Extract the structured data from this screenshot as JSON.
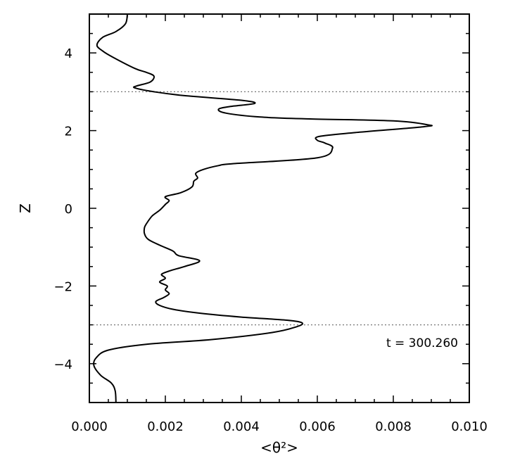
{
  "chart_data": {
    "type": "line",
    "title": "",
    "xlabel": "<θ²>",
    "ylabel": "Z",
    "xlim": [
      0.0,
      0.01
    ],
    "ylim": [
      -5,
      5
    ],
    "x_ticks": [
      "0.000",
      "0.002",
      "0.004",
      "0.006",
      "0.008",
      "0.010"
    ],
    "y_ticks": [
      "-4",
      "-2",
      "0",
      "2",
      "4"
    ],
    "annotation": "t = 300.260",
    "reference_lines": {
      "horizontal": [
        3.0,
        -3.0
      ],
      "vertical": [
        0.0
      ]
    },
    "series": [
      {
        "color": "#000000",
        "points": [
          [
            0.0007,
            -5.0
          ],
          [
            0.00068,
            -4.7
          ],
          [
            0.00058,
            -4.5
          ],
          [
            0.0003,
            -4.3
          ],
          [
            0.00012,
            -4.05
          ],
          [
            0.00018,
            -3.85
          ],
          [
            0.0005,
            -3.65
          ],
          [
            0.0015,
            -3.5
          ],
          [
            0.0032,
            -3.38
          ],
          [
            0.0048,
            -3.2
          ],
          [
            0.00545,
            -3.05
          ],
          [
            0.0056,
            -2.95
          ],
          [
            0.0052,
            -2.88
          ],
          [
            0.004,
            -2.8
          ],
          [
            0.0029,
            -2.7
          ],
          [
            0.0022,
            -2.6
          ],
          [
            0.00185,
            -2.5
          ],
          [
            0.00175,
            -2.4
          ],
          [
            0.00195,
            -2.3
          ],
          [
            0.0021,
            -2.2
          ],
          [
            0.002,
            -2.1
          ],
          [
            0.00205,
            -2.0
          ],
          [
            0.00185,
            -1.9
          ],
          [
            0.002,
            -1.8
          ],
          [
            0.0019,
            -1.7
          ],
          [
            0.00215,
            -1.6
          ],
          [
            0.0025,
            -1.5
          ],
          [
            0.0029,
            -1.35
          ],
          [
            0.00235,
            -1.22
          ],
          [
            0.0022,
            -1.1
          ],
          [
            0.00185,
            -0.95
          ],
          [
            0.00155,
            -0.8
          ],
          [
            0.00145,
            -0.65
          ],
          [
            0.00145,
            -0.5
          ],
          [
            0.0015,
            -0.4
          ],
          [
            0.00165,
            -0.2
          ],
          [
            0.00185,
            -0.05
          ],
          [
            0.002,
            0.1
          ],
          [
            0.0021,
            0.2
          ],
          [
            0.002,
            0.3
          ],
          [
            0.0024,
            0.4
          ],
          [
            0.0027,
            0.55
          ],
          [
            0.00275,
            0.7
          ],
          [
            0.00285,
            0.78
          ],
          [
            0.0028,
            0.9
          ],
          [
            0.003,
            1.0
          ],
          [
            0.0034,
            1.1
          ],
          [
            0.0038,
            1.15
          ],
          [
            0.006,
            1.3
          ],
          [
            0.0064,
            1.55
          ],
          [
            0.0062,
            1.68
          ],
          [
            0.006,
            1.75
          ],
          [
            0.00605,
            1.85
          ],
          [
            0.007,
            1.95
          ],
          [
            0.0088,
            2.1
          ],
          [
            0.0089,
            2.15
          ],
          [
            0.008,
            2.25
          ],
          [
            0.0058,
            2.3
          ],
          [
            0.0045,
            2.35
          ],
          [
            0.0036,
            2.45
          ],
          [
            0.0034,
            2.55
          ],
          [
            0.0037,
            2.62
          ],
          [
            0.00435,
            2.7
          ],
          [
            0.004,
            2.78
          ],
          [
            0.0025,
            2.9
          ],
          [
            0.0017,
            3.0
          ],
          [
            0.0012,
            3.1
          ],
          [
            0.00125,
            3.15
          ],
          [
            0.0016,
            3.25
          ],
          [
            0.0017,
            3.4
          ],
          [
            0.0015,
            3.5
          ],
          [
            0.0012,
            3.6
          ],
          [
            0.0006,
            3.9
          ],
          [
            0.00035,
            4.05
          ],
          [
            0.0002,
            4.2
          ],
          [
            0.00035,
            4.4
          ],
          [
            0.0007,
            4.55
          ],
          [
            0.00095,
            4.75
          ],
          [
            0.001,
            5.0
          ]
        ]
      }
    ]
  }
}
